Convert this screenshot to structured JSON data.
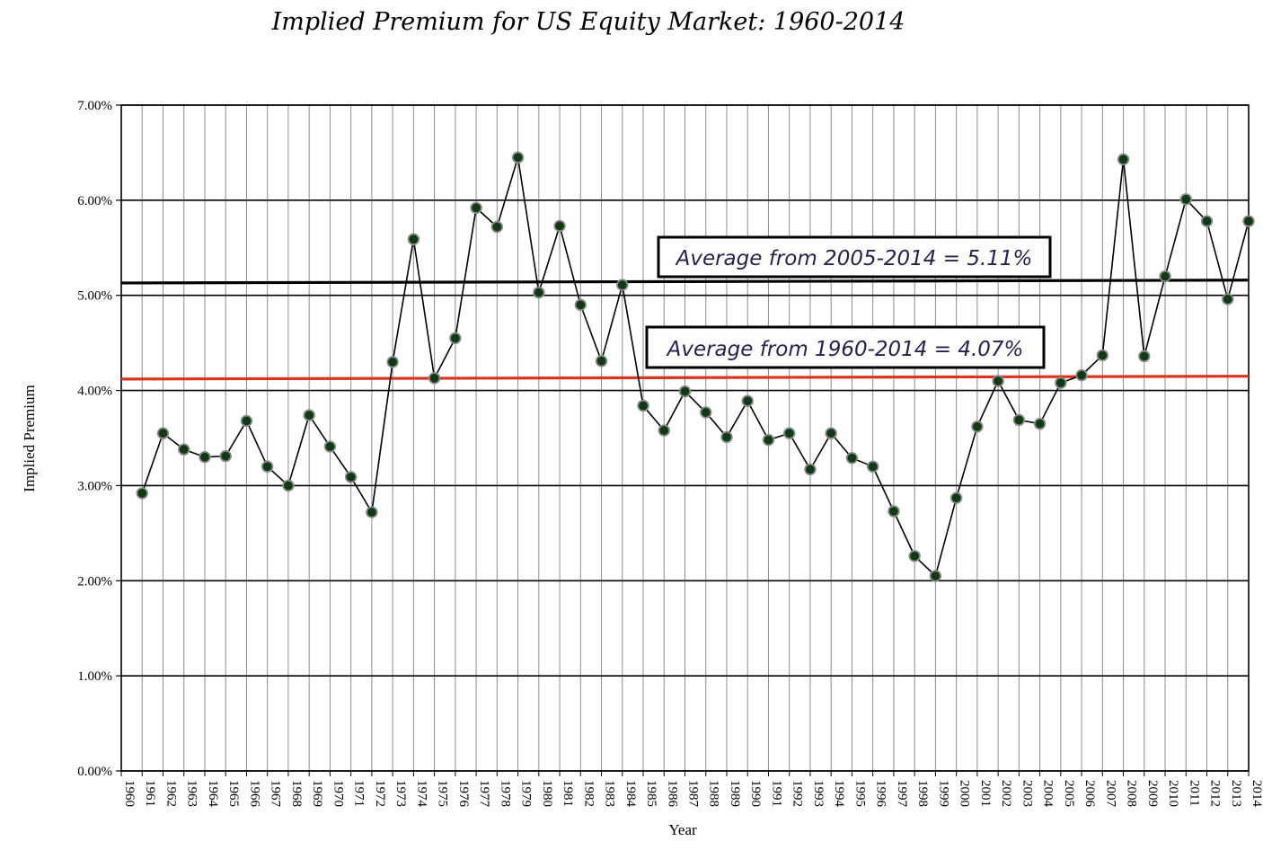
{
  "chart_data": {
    "type": "line",
    "title": "Implied Premium for US Equity Market: 1960-2014",
    "xlabel": "Year",
    "ylabel": "Implied Premium",
    "ylim": [
      0,
      7
    ],
    "yticks": [
      "0.00%",
      "1.00%",
      "2.00%",
      "3.00%",
      "4.00%",
      "5.00%",
      "6.00%",
      "7.00%"
    ],
    "grid": "on",
    "categories": [
      "1960",
      "1961",
      "1962",
      "1963",
      "1964",
      "1965",
      "1966",
      "1967",
      "1968",
      "1969",
      "1970",
      "1971",
      "1972",
      "1973",
      "1974",
      "1975",
      "1976",
      "1977",
      "1978",
      "1979",
      "1980",
      "1981",
      "1982",
      "1983",
      "1984",
      "1985",
      "1986",
      "1987",
      "1988",
      "1989",
      "1990",
      "1991",
      "1992",
      "1993",
      "1994",
      "1995",
      "1996",
      "1997",
      "1998",
      "1999",
      "2000",
      "2001",
      "2002",
      "2003",
      "2004",
      "2005",
      "2006",
      "2007",
      "2008",
      "2009",
      "2010",
      "2011",
      "2012",
      "2013",
      "2014"
    ],
    "series": [
      {
        "values": [
          null,
          2.92,
          3.55,
          3.38,
          3.3,
          3.31,
          3.68,
          3.2,
          3.0,
          3.74,
          3.41,
          3.09,
          2.72,
          4.3,
          5.59,
          4.13,
          4.55,
          5.92,
          5.72,
          6.45,
          5.03,
          5.73,
          4.9,
          4.31,
          5.11,
          3.84,
          3.58,
          3.99,
          3.77,
          3.51,
          3.89,
          3.48,
          3.55,
          3.17,
          3.55,
          3.29,
          3.2,
          2.73,
          2.26,
          2.05,
          2.87,
          3.62,
          4.1,
          3.69,
          3.65,
          4.08,
          4.16,
          4.37,
          6.43,
          4.36,
          5.2,
          6.01,
          5.78,
          4.96,
          5.78
        ],
        "color": "#000000",
        "marker_color": "#0f3a14"
      }
    ],
    "reference_lines": [
      {
        "label": "Average from 2005-2014 = 5.11%",
        "y_start": 5.13,
        "y_end": 5.16,
        "color": "#000000"
      },
      {
        "label": "Average from 1960-2014 = 4.07%",
        "y_start": 4.12,
        "y_end": 4.15,
        "color": "#d8351c"
      }
    ]
  }
}
